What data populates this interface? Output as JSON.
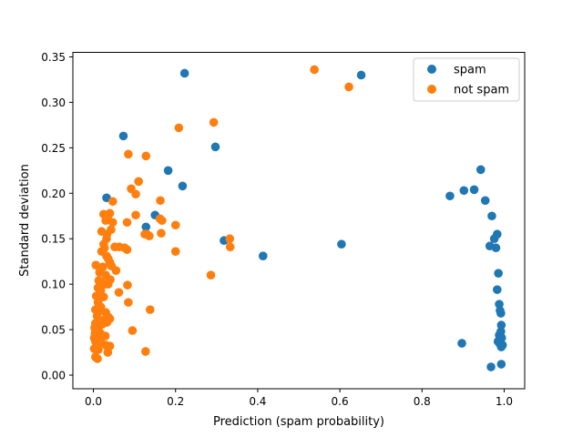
{
  "chart_data": {
    "type": "scatter",
    "xlabel": "Prediction (spam probability)",
    "ylabel": "Standard deviation",
    "xlim": [
      -0.05,
      1.05
    ],
    "ylim": [
      -0.015,
      0.355
    ],
    "xticks": [
      0.0,
      0.2,
      0.4,
      0.6,
      0.8,
      1.0
    ],
    "xtick_labels": [
      "0.0",
      "0.2",
      "0.4",
      "0.6",
      "0.8",
      "1.0"
    ],
    "yticks": [
      0.0,
      0.05,
      0.1,
      0.15,
      0.2,
      0.25,
      0.3,
      0.35
    ],
    "ytick_labels": [
      "0.00",
      "0.05",
      "0.10",
      "0.15",
      "0.20",
      "0.25",
      "0.30",
      "0.35"
    ],
    "grid": false,
    "legend_position": "upper right",
    "series": [
      {
        "name": "spam",
        "color": "#1f77b4",
        "points": [
          [
            0.222,
            0.332
          ],
          [
            0.652,
            0.33
          ],
          [
            0.073,
            0.263
          ],
          [
            0.297,
            0.251
          ],
          [
            0.182,
            0.225
          ],
          [
            0.217,
            0.208
          ],
          [
            0.032,
            0.195
          ],
          [
            0.943,
            0.226
          ],
          [
            0.868,
            0.197
          ],
          [
            0.902,
            0.203
          ],
          [
            0.927,
            0.204
          ],
          [
            0.954,
            0.192
          ],
          [
            0.97,
            0.175
          ],
          [
            0.983,
            0.155
          ],
          [
            0.976,
            0.15
          ],
          [
            0.965,
            0.142
          ],
          [
            0.98,
            0.14
          ],
          [
            0.128,
            0.163
          ],
          [
            0.15,
            0.176
          ],
          [
            0.318,
            0.148
          ],
          [
            0.604,
            0.144
          ],
          [
            0.413,
            0.131
          ],
          [
            0.986,
            0.112
          ],
          [
            0.983,
            0.094
          ],
          [
            0.988,
            0.078
          ],
          [
            0.99,
            0.071
          ],
          [
            0.992,
            0.068
          ],
          [
            0.993,
            0.055
          ],
          [
            0.992,
            0.048
          ],
          [
            0.988,
            0.044
          ],
          [
            0.994,
            0.041
          ],
          [
            0.985,
            0.037
          ],
          [
            0.99,
            0.034
          ],
          [
            0.996,
            0.033
          ],
          [
            0.993,
            0.031
          ],
          [
            0.897,
            0.035
          ],
          [
            0.968,
            0.009
          ],
          [
            0.993,
            0.012
          ]
        ]
      },
      {
        "name": "not spam",
        "color": "#ff7f0e",
        "points": [
          [
            0.538,
            0.336
          ],
          [
            0.622,
            0.317
          ],
          [
            0.293,
            0.278
          ],
          [
            0.208,
            0.272
          ],
          [
            0.085,
            0.243
          ],
          [
            0.128,
            0.241
          ],
          [
            0.11,
            0.213
          ],
          [
            0.092,
            0.205
          ],
          [
            0.103,
            0.199
          ],
          [
            0.163,
            0.192
          ],
          [
            0.047,
            0.191
          ],
          [
            0.025,
            0.177
          ],
          [
            0.04,
            0.178
          ],
          [
            0.035,
            0.172
          ],
          [
            0.047,
            0.168
          ],
          [
            0.03,
            0.17
          ],
          [
            0.082,
            0.168
          ],
          [
            0.103,
            0.176
          ],
          [
            0.162,
            0.172
          ],
          [
            0.167,
            0.17
          ],
          [
            0.2,
            0.165
          ],
          [
            0.02,
            0.158
          ],
          [
            0.043,
            0.16
          ],
          [
            0.033,
            0.155
          ],
          [
            0.125,
            0.155
          ],
          [
            0.165,
            0.156
          ],
          [
            0.332,
            0.15
          ],
          [
            0.032,
            0.15
          ],
          [
            0.025,
            0.144
          ],
          [
            0.027,
            0.14
          ],
          [
            0.052,
            0.141
          ],
          [
            0.063,
            0.141
          ],
          [
            0.076,
            0.14
          ],
          [
            0.082,
            0.138
          ],
          [
            0.13,
            0.155
          ],
          [
            0.136,
            0.153
          ],
          [
            0.333,
            0.141
          ],
          [
            0.2,
            0.136
          ],
          [
            0.02,
            0.136
          ],
          [
            0.032,
            0.131
          ],
          [
            0.036,
            0.128
          ],
          [
            0.04,
            0.124
          ],
          [
            0.044,
            0.12
          ],
          [
            0.006,
            0.121
          ],
          [
            0.023,
            0.119
          ],
          [
            0.055,
            0.115
          ],
          [
            0.015,
            0.113
          ],
          [
            0.03,
            0.11
          ],
          [
            0.041,
            0.105
          ],
          [
            0.286,
            0.11
          ],
          [
            0.013,
            0.104
          ],
          [
            0.021,
            0.102
          ],
          [
            0.03,
            0.1
          ],
          [
            0.036,
            0.1
          ],
          [
            0.011,
            0.096
          ],
          [
            0.018,
            0.093
          ],
          [
            0.062,
            0.091
          ],
          [
            0.083,
            0.099
          ],
          [
            0.007,
            0.087
          ],
          [
            0.015,
            0.085
          ],
          [
            0.025,
            0.086
          ],
          [
            0.011,
            0.08
          ],
          [
            0.085,
            0.08
          ],
          [
            0.018,
            0.075
          ],
          [
            0.005,
            0.072
          ],
          [
            0.013,
            0.07
          ],
          [
            0.03,
            0.069
          ],
          [
            0.138,
            0.072
          ],
          [
            0.009,
            0.065
          ],
          [
            0.036,
            0.064
          ],
          [
            0.04,
            0.062
          ],
          [
            0.017,
            0.06
          ],
          [
            0.027,
            0.061
          ],
          [
            0.005,
            0.057
          ],
          [
            0.013,
            0.055
          ],
          [
            0.022,
            0.056
          ],
          [
            0.033,
            0.058
          ],
          [
            0.003,
            0.052
          ],
          [
            0.012,
            0.05
          ],
          [
            0.095,
            0.049
          ],
          [
            0.004,
            0.046
          ],
          [
            0.017,
            0.046
          ],
          [
            0.029,
            0.043
          ],
          [
            0.002,
            0.041
          ],
          [
            0.011,
            0.04
          ],
          [
            0.005,
            0.037
          ],
          [
            0.019,
            0.035
          ],
          [
            0.03,
            0.033
          ],
          [
            0.04,
            0.032
          ],
          [
            0.002,
            0.029
          ],
          [
            0.012,
            0.028
          ],
          [
            0.035,
            0.025
          ],
          [
            0.127,
            0.026
          ],
          [
            0.005,
            0.02
          ],
          [
            0.01,
            0.018
          ]
        ]
      }
    ]
  }
}
